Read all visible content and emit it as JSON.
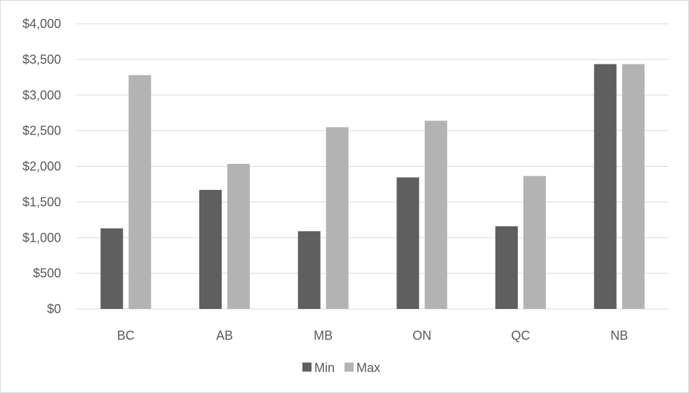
{
  "chart_data": {
    "type": "bar",
    "categories": [
      "BC",
      "AB",
      "MB",
      "ON",
      "QC",
      "NB"
    ],
    "series": [
      {
        "name": "Min",
        "values": [
          1130,
          1670,
          1090,
          1845,
          1160,
          3435
        ],
        "color": "#5f5f5f"
      },
      {
        "name": "Max",
        "values": [
          3280,
          2035,
          2550,
          2640,
          1865,
          3435
        ],
        "color": "#b3b3b3"
      }
    ],
    "y_ticks": [
      0,
      500,
      1000,
      1500,
      2000,
      2500,
      3000,
      3500,
      4000
    ],
    "y_tick_labels": [
      "$0",
      "$500",
      "$1,000",
      "$1,500",
      "$2,000",
      "$2,500",
      "$3,000",
      "$3,500",
      "$4,000"
    ],
    "ylim": [
      0,
      4000
    ],
    "grid": true,
    "legend_position": "bottom-center",
    "title": "",
    "xlabel": "",
    "ylabel": "",
    "gridline_color": "#d9d9d9"
  }
}
